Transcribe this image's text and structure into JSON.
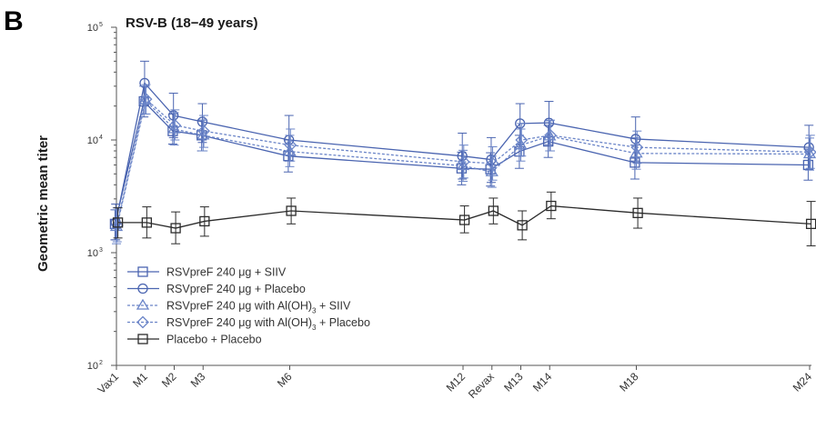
{
  "panel_label": "B",
  "chart_data": {
    "type": "line",
    "title": "RSV-B (18−49 years)",
    "ylabel": "Geometric mean titer",
    "xlabel": "",
    "yscale": "log",
    "ylim": [
      100,
      100000
    ],
    "yticks": [
      {
        "base": "10",
        "exp": "5",
        "value": 100000
      },
      {
        "base": "10",
        "exp": "4",
        "value": 10000
      },
      {
        "base": "10",
        "exp": "3",
        "value": 1000
      },
      {
        "base": "10",
        "exp": "2",
        "value": 100
      }
    ],
    "categories": [
      "Vax1",
      "M1",
      "M2",
      "M3",
      "M6",
      "M12",
      "Revax",
      "M13",
      "M14",
      "M18",
      "M24"
    ],
    "x": [
      0,
      1,
      2,
      3,
      6,
      12,
      13,
      14,
      15,
      18,
      24
    ],
    "series": [
      {
        "name": "RSVpreF 240 μg + SIIV",
        "color": "#4a64b0",
        "marker": "square",
        "dash": "solid",
        "values": [
          1800,
          22000,
          12000,
          11000,
          7200,
          5600,
          5500,
          7900,
          9700,
          6300,
          6000
        ],
        "lower": [
          1300,
          16000,
          9200,
          8000,
          5200,
          4000,
          3900,
          5600,
          7000,
          4500,
          4400
        ],
        "upper": [
          2400,
          30000,
          17000,
          15000,
          10000,
          7800,
          7700,
          11000,
          13500,
          9000,
          8300
        ]
      },
      {
        "name": "RSVpreF 240 μg + Placebo",
        "color": "#4a64b0",
        "marker": "circle",
        "dash": "solid",
        "values": [
          1850,
          32000,
          16500,
          14500,
          10000,
          7200,
          6700,
          14000,
          14200,
          10200,
          8600
        ],
        "lower": [
          1300,
          21000,
          10500,
          9500,
          6500,
          4500,
          4200,
          9000,
          9100,
          6500,
          5500
        ],
        "upper": [
          2700,
          50000,
          26000,
          21000,
          16500,
          11500,
          10500,
          21000,
          22000,
          16000,
          13500
        ]
      },
      {
        "name": "RSVpreF 240 μg with Al(OH)",
        "name_subscript": "3",
        "name_suffix": " + SIIV",
        "color": "#6b85c8",
        "marker": "triangle",
        "dash": "dotted",
        "values": [
          1700,
          22500,
          12500,
          11000,
          7900,
          5900,
          5200,
          9000,
          10800,
          7600,
          7500
        ],
        "lower": [
          1200,
          17000,
          9000,
          8000,
          5800,
          4300,
          3800,
          6500,
          8000,
          5500,
          5400
        ],
        "upper": [
          2400,
          30000,
          17500,
          15000,
          11000,
          8100,
          7200,
          12500,
          14800,
          10500,
          10400
        ]
      },
      {
        "name": "RSVpreF 240 μg with Al(OH)",
        "name_subscript": "3",
        "name_suffix": " + Placebo",
        "color": "#6b85c8",
        "marker": "diamond",
        "dash": "dotted",
        "values": [
          1750,
          23000,
          13500,
          12000,
          9000,
          6400,
          6200,
          10000,
          11000,
          8600,
          7800
        ],
        "lower": [
          1250,
          17000,
          10000,
          8600,
          6500,
          4600,
          4400,
          7200,
          8000,
          6200,
          5600
        ],
        "upper": [
          2500,
          31000,
          18500,
          16500,
          12500,
          9000,
          8700,
          14000,
          15000,
          12000,
          11000
        ]
      },
      {
        "name": "Placebo + Placebo",
        "color": "#2b2b2b",
        "marker": "square",
        "dash": "solid",
        "values": [
          1850,
          1850,
          1650,
          1900,
          2350,
          1950,
          2350,
          1750,
          2600,
          2250,
          1800
        ],
        "lower": [
          1350,
          1350,
          1200,
          1400,
          1800,
          1500,
          1800,
          1300,
          2000,
          1650,
          1150
        ],
        "upper": [
          2500,
          2550,
          2300,
          2550,
          3050,
          2600,
          3050,
          2350,
          3450,
          3050,
          2850
        ]
      }
    ],
    "legend_position": "bottom-left",
    "grid": false
  }
}
